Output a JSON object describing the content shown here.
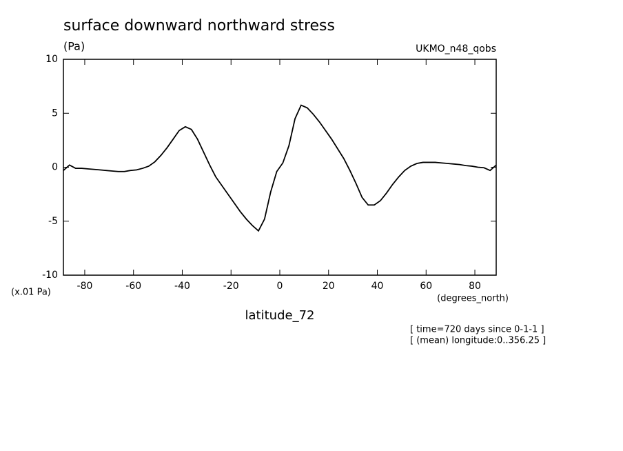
{
  "chart_data": {
    "type": "line",
    "title": "surface downward northward stress",
    "y_units": "(Pa)",
    "dataset": "UKMO_n48_qobs",
    "y_scale_note": "(x.01 Pa)",
    "x_units": "(degrees_north)",
    "x_label": "latitude_72",
    "notes": [
      "[ time=720 days since 0-1-1 ]",
      "[ (mean) longitude:0..356.25 ]"
    ],
    "x": [
      -88.75,
      -86.25,
      -83.75,
      -81.25,
      -78.75,
      -76.25,
      -73.75,
      -71.25,
      -68.75,
      -66.25,
      -63.75,
      -61.25,
      -58.75,
      -56.25,
      -53.75,
      -51.25,
      -48.75,
      -46.25,
      -43.75,
      -41.25,
      -38.75,
      -36.25,
      -33.75,
      -31.25,
      -28.75,
      -26.25,
      -23.75,
      -21.25,
      -18.75,
      -16.25,
      -13.75,
      -11.25,
      -8.75,
      -6.25,
      -3.75,
      -1.25,
      1.25,
      3.75,
      6.25,
      8.75,
      11.25,
      13.75,
      16.25,
      18.75,
      21.25,
      23.75,
      26.25,
      28.75,
      31.25,
      33.75,
      36.25,
      38.75,
      41.25,
      43.75,
      46.25,
      48.75,
      51.25,
      53.75,
      56.25,
      58.75,
      61.25,
      63.75,
      66.25,
      68.75,
      71.25,
      73.75,
      76.25,
      78.75,
      81.25,
      83.75,
      86.25,
      88.75
    ],
    "series": [
      {
        "color": "#000000",
        "values": [
          -0.3,
          0.2,
          -0.1,
          -0.1,
          -0.15,
          -0.2,
          -0.25,
          -0.3,
          -0.35,
          -0.4,
          -0.4,
          -0.3,
          -0.25,
          -0.1,
          0.1,
          0.5,
          1.1,
          1.8,
          2.6,
          3.4,
          3.75,
          3.5,
          2.6,
          1.4,
          0.2,
          -0.9,
          -1.7,
          -2.5,
          -3.3,
          -4.1,
          -4.8,
          -5.4,
          -5.9,
          -4.8,
          -2.3,
          -0.4,
          0.4,
          2.0,
          4.5,
          5.75,
          5.5,
          4.9,
          4.2,
          3.4,
          2.6,
          1.7,
          0.8,
          -0.3,
          -1.5,
          -2.8,
          -3.5,
          -3.5,
          -3.1,
          -2.4,
          -1.6,
          -0.9,
          -0.3,
          0.1,
          0.35,
          0.45,
          0.45,
          0.45,
          0.4,
          0.35,
          0.3,
          0.25,
          0.15,
          0.1,
          0.0,
          -0.05,
          -0.3,
          0.2
        ]
      }
    ],
    "xlim": [
      -88.75,
      88.75
    ],
    "xticks": [
      -80,
      -60,
      -40,
      -20,
      0,
      20,
      40,
      60,
      80
    ],
    "ylim": [
      -10,
      10
    ],
    "yticks": [
      -10,
      -5,
      0,
      5,
      10
    ]
  }
}
